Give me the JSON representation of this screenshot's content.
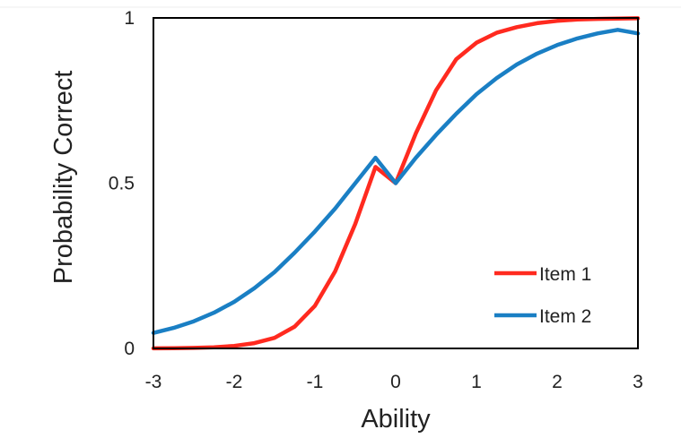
{
  "chart_data": {
    "type": "line",
    "title": "",
    "xlabel": "Ability",
    "ylabel": "Probability Correct",
    "xlim": [
      -3,
      3
    ],
    "ylim": [
      0,
      1
    ],
    "x_ticks": [
      "-3",
      "-2",
      "-1",
      "0",
      "1",
      "2",
      "3"
    ],
    "y_ticks": [
      "0",
      "0.5",
      "1"
    ],
    "grid": false,
    "legend_position": "bottom-right",
    "x": [
      -3,
      -2.75,
      -2.5,
      -2.25,
      -2,
      -1.75,
      -1.5,
      -1.25,
      -1,
      -0.75,
      -0.5,
      -0.25,
      0,
      0.25,
      0.5,
      0.75,
      1,
      1.25,
      1.5,
      1.75,
      2,
      2.25,
      2.5,
      2.75,
      3
    ],
    "series": [
      {
        "name": "Item 1",
        "color": "#ff2a1f",
        "values": [
          0.0004,
          0.0008,
          0.0017,
          0.0036,
          0.0075,
          0.016,
          0.032,
          0.066,
          0.129,
          0.233,
          0.377,
          0.549,
          0.5,
          0.651,
          0.781,
          0.875,
          0.925,
          0.955,
          0.972,
          0.984,
          0.991,
          0.995,
          0.997,
          0.998,
          0.999
        ]
      },
      {
        "name": "Item 2",
        "color": "#1a7fc4",
        "values": [
          0.047,
          0.062,
          0.082,
          0.108,
          0.141,
          0.182,
          0.231,
          0.29,
          0.354,
          0.423,
          0.5,
          0.577,
          0.5,
          0.577,
          0.646,
          0.71,
          0.769,
          0.818,
          0.859,
          0.892,
          0.918,
          0.938,
          0.953,
          0.964,
          0.953
        ]
      }
    ]
  }
}
